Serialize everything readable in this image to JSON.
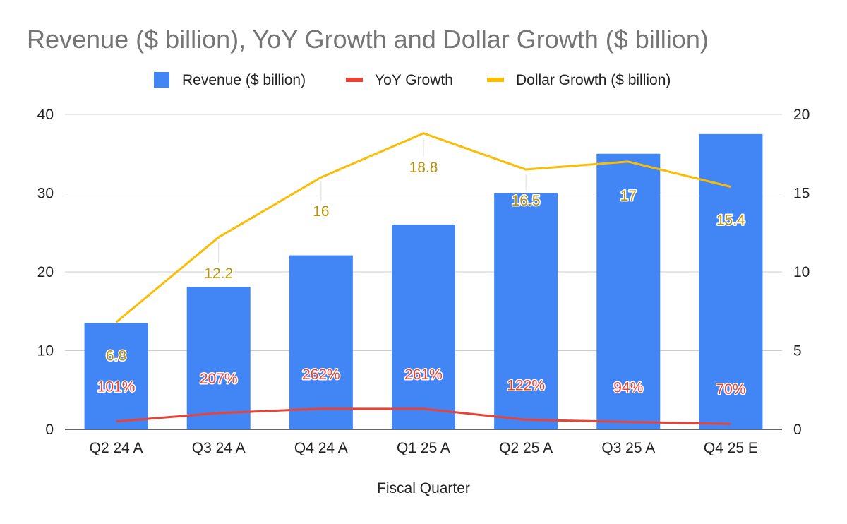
{
  "chart_data": {
    "type": "bar",
    "title": "Revenue ($ billion), YoY Growth and Dollar Growth ($ billion)",
    "xlabel": "Fiscal Quarter",
    "categories": [
      "Q2 24 A",
      "Q3 24 A",
      "Q4 24 A",
      "Q1 25 A",
      "Q2 25 A",
      "Q3 25 A",
      "Q4 25 E"
    ],
    "y_left": {
      "min": 0,
      "max": 40,
      "ticks": [
        "0",
        "10",
        "20",
        "30",
        "40"
      ]
    },
    "y_right": {
      "min": 0,
      "max": 20,
      "ticks": [
        "0",
        "5",
        "10",
        "15",
        "20"
      ]
    },
    "grid": true,
    "legend_position": "top",
    "series": [
      {
        "name": "Revenue ($ billion)",
        "type": "bar",
        "axis": "left",
        "color": "#4285F4",
        "values": [
          13.5,
          18.1,
          22.1,
          26.0,
          30.0,
          35.0,
          37.5
        ]
      },
      {
        "name": "YoY Growth",
        "type": "line",
        "axis": "left",
        "color": "#EA4335",
        "values": [
          1.01,
          2.07,
          2.62,
          2.61,
          1.22,
          0.94,
          0.7
        ],
        "labels": [
          "101%",
          "207%",
          "262%",
          "261%",
          "122%",
          "94%",
          "70%"
        ]
      },
      {
        "name": "Dollar Growth ($ billion)",
        "type": "line",
        "axis": "right",
        "color": "#FBBC04",
        "label_color": "#B8900A",
        "values": [
          6.8,
          12.2,
          16,
          18.8,
          16.5,
          17,
          15.4
        ],
        "labels": [
          "6.8",
          "12.2",
          "16",
          "18.8",
          "16.5",
          "17",
          "15.4"
        ]
      }
    ]
  }
}
